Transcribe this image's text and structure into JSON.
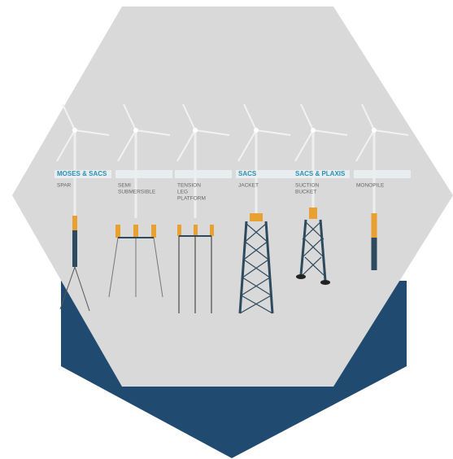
{
  "turbines": [
    {
      "software": "MOSES & SACS",
      "label": [
        "SPAR"
      ]
    },
    {
      "label": [
        "SEMI",
        "SUBMERSIBLE"
      ]
    },
    {
      "label": [
        "TENSION",
        "LEG",
        "PLATFORM"
      ]
    },
    {
      "software": "SACS",
      "label": [
        "JACKET"
      ]
    },
    {
      "software": "SACS & PLAXIS",
      "label": [
        "SUCTION",
        "BUCKET"
      ]
    },
    {
      "label": [
        "MONOPILE"
      ]
    }
  ]
}
